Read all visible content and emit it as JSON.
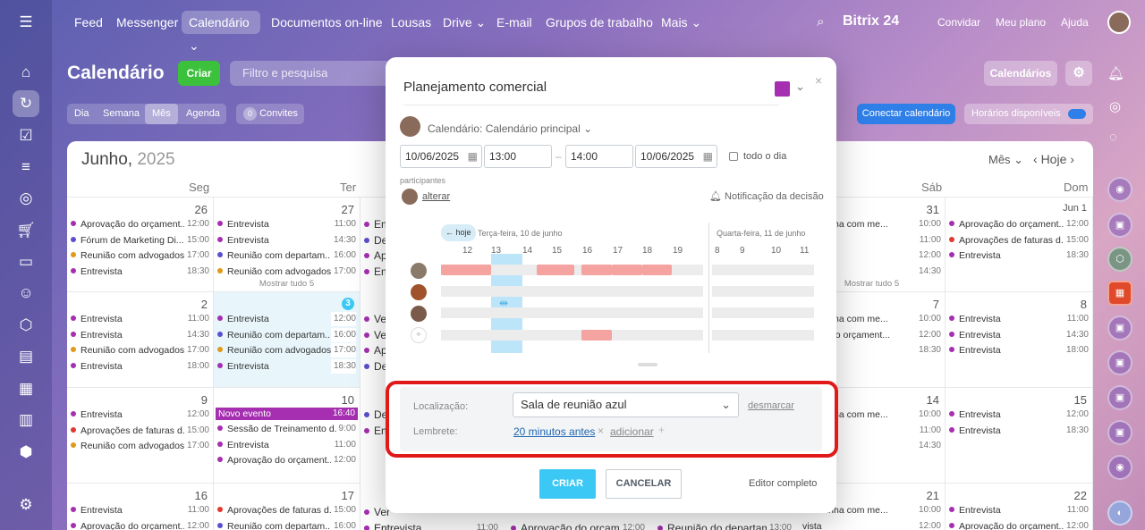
{
  "topnav": {
    "items": [
      "Feed",
      "Messenger",
      "Calendário",
      "Documentos on-line",
      "Lousas",
      "Drive",
      "E-mail",
      "Grupos de trabalho",
      "Mais"
    ],
    "brand": "Bitrix 24",
    "invite": "Convidar",
    "plan": "Meu plano",
    "help": "Ajuda"
  },
  "toolbar": {
    "title": "Calendário",
    "create": "Criar",
    "filter_placeholder": "Filtro e pesquisa",
    "calendars": "Calendários",
    "views": [
      "Dia",
      "Semana",
      "Mês",
      "Agenda"
    ],
    "invites_count": "0",
    "invites": "Convites",
    "connect": "Conectar calendário",
    "hours": "Horários disponíveis"
  },
  "calendar": {
    "month": "Junho,",
    "year": "2025",
    "view_select": "Mês",
    "today": "Hoje",
    "weekdays": [
      "Seg",
      "Ter",
      "Sáb",
      "Dom"
    ],
    "rows": [
      {
        "mon": {
          "day": "26",
          "events": [
            [
              "Aprovação do orçament...",
              "12:00",
              "#a52fb0"
            ],
            [
              "Fórum de Marketing Di...",
              "15:00",
              "#5b4fcf"
            ],
            [
              "Reunião com advogados",
              "17:00",
              "#e09a1a"
            ],
            [
              "Entrevista",
              "18:30",
              "#a52fb0"
            ]
          ]
        },
        "tue": {
          "day": "27",
          "events": [
            [
              "Entrevista",
              "11:00",
              "#a52fb0"
            ],
            [
              "Entrevista",
              "14:30",
              "#a52fb0"
            ],
            [
              "Reunião com departam...",
              "16:00",
              "#5b4fcf"
            ],
            [
              "Reunião com advogados",
              "17:00",
              "#e09a1a"
            ]
          ],
          "more": "Mostrar tudo 5"
        },
        "sat": {
          "day": "31",
          "events": [
            [
              "da manha com me...",
              "10:00",
              ""
            ],
            [
              "vista",
              "11:00",
              ""
            ],
            [
              "vista",
              "12:00",
              ""
            ],
            [
              "vista",
              "14:30",
              ""
            ]
          ],
          "more": "Mostrar tudo 5"
        },
        "sun": {
          "day": "Jun 1",
          "events": [
            [
              "Aprovação do orçament...",
              "12:00",
              "#a52fb0"
            ],
            [
              "Aprovações de faturas d...",
              "15:00",
              "#e0392f"
            ],
            [
              "Entrevista",
              "18:30",
              "#a52fb0"
            ]
          ]
        }
      },
      {
        "mon": {
          "day": "2",
          "events": [
            [
              "Entrevista",
              "11:00",
              "#a52fb0"
            ],
            [
              "Entrevista",
              "14:30",
              "#a52fb0"
            ],
            [
              "Reunião com advogados",
              "17:00",
              "#e09a1a"
            ],
            [
              "Entrevista",
              "18:00",
              "#a52fb0"
            ]
          ]
        },
        "tue": {
          "day": "3",
          "events": [
            [
              "Entrevista",
              "12:00",
              "#a52fb0"
            ],
            [
              "Reunião com departam...",
              "16:00",
              "#5b4fcf"
            ],
            [
              "Reunião com advogados",
              "17:00",
              "#e09a1a"
            ],
            [
              "Entrevista",
              "18:30",
              "#a52fb0"
            ]
          ]
        },
        "sat": {
          "day": "7",
          "events": [
            [
              "da manha com me...",
              "10:00",
              ""
            ],
            [
              "vação do orçament...",
              "12:00",
              ""
            ],
            [
              "vista",
              "18:30",
              ""
            ]
          ]
        },
        "sun": {
          "day": "8",
          "events": [
            [
              "Entrevista",
              "11:00",
              "#a52fb0"
            ],
            [
              "Entrevista",
              "14:30",
              "#a52fb0"
            ],
            [
              "Entrevista",
              "18:00",
              "#a52fb0"
            ]
          ]
        }
      },
      {
        "mon": {
          "day": "9",
          "events": [
            [
              "Entrevista",
              "12:00",
              "#a52fb0"
            ],
            [
              "Aprovações de faturas d...",
              "15:00",
              "#e0392f"
            ],
            [
              "Reunião com advogados",
              "17:00",
              "#e09a1a"
            ]
          ]
        },
        "tue": {
          "day": "10",
          "new_event": "Novo evento",
          "new_time": "16:40",
          "events": [
            [
              "Sessão de Treinamento d...",
              "9:00",
              "#a52fb0"
            ],
            [
              "Entrevista",
              "11:00",
              "#a52fb0"
            ],
            [
              "Aprovação do orçament...",
              "12:00",
              "#a52fb0"
            ]
          ]
        },
        "sat": {
          "day": "14",
          "events": [
            [
              "da manha com me...",
              "10:00",
              ""
            ],
            [
              "vista",
              "11:00",
              ""
            ],
            [
              "vista",
              "14:30",
              ""
            ]
          ]
        },
        "sun": {
          "day": "15",
          "events": [
            [
              "Entrevista",
              "12:00",
              "#a52fb0"
            ],
            [
              "Entrevista",
              "18:30",
              "#a52fb0"
            ]
          ]
        }
      },
      {
        "mon": {
          "day": "16",
          "events": [
            [
              "Entrevista",
              "11:00",
              "#a52fb0"
            ],
            [
              "Aprovação do orçament...",
              "12:00",
              "#a52fb0"
            ]
          ]
        },
        "tue": {
          "day": "17",
          "events": [
            [
              "Aprovações de faturas d...",
              "15:00",
              "#e0392f"
            ],
            [
              "Reunião com departam...",
              "16:00",
              "#5b4fcf"
            ]
          ]
        },
        "sat": {
          "day": "21",
          "events": [
            [
              "da manha com me...",
              "10:00",
              ""
            ],
            [
              "vista",
              "12:00",
              ""
            ]
          ]
        },
        "sun": {
          "day": "22",
          "events": [
            [
              "Entrevista",
              "11:00",
              "#a52fb0"
            ],
            [
              "Aprovação do orçament...",
              "12:00",
              "#a52fb0"
            ]
          ]
        }
      }
    ],
    "partial_col_labels": [
      "Ent",
      "De",
      "Ap",
      "Ent",
      "Ver",
      "Ve",
      "Ap",
      "De",
      "De",
      "Ent",
      "Ver",
      "Entrevista",
      "Aprovação do orçament...",
      "Reunião do departamen...",
      "Entrevista"
    ],
    "partial_times": [
      "11:00",
      "12:00",
      "13:00",
      "12:00"
    ]
  },
  "modal": {
    "title": "Planejamento comercial",
    "color": "#a52fb0",
    "calendar_label": "Calendário: Calendário principal",
    "date_from": "10/06/2025",
    "time_from": "13:00",
    "time_to": "14:00",
    "date_to": "10/06/2025",
    "all_day": "todo o dia",
    "participants": "participantes",
    "change": "alterar",
    "notification": "Notificação da decisão",
    "today_btn": "← hoje",
    "day1": "Terça-feira, 10 de junho",
    "day2": "Quarta-feira, 11 de junho",
    "hours1": [
      "12",
      "13",
      "14",
      "15",
      "16",
      "17",
      "18",
      "19"
    ],
    "hours2": [
      "8",
      "9",
      "10",
      "11"
    ],
    "location_label": "Localização:",
    "location_value": "Sala de reunião azul",
    "unmark": "desmarcar",
    "reminder_label": "Lembrete:",
    "reminder_value": "20 minutos antes",
    "add": "adicionar",
    "create": "CRIAR",
    "cancel": "CANCELAR",
    "full_editor": "Editor completo"
  }
}
